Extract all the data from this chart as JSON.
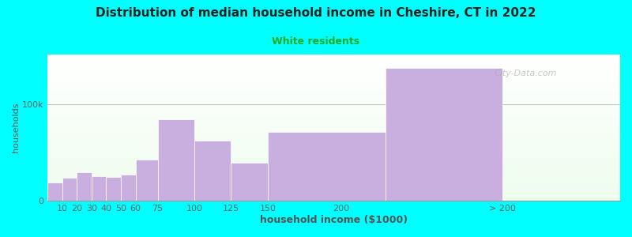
{
  "title": "Distribution of median household income in Cheshire, CT in 2022",
  "subtitle": "White residents",
  "xlabel": "household income ($1000)",
  "ylabel": "households",
  "background_color": "#00FFFF",
  "bar_color": "#c9aee0",
  "gridline_color": "#bbbbbb",
  "title_color": "#222222",
  "subtitle_color": "#22aa22",
  "axis_label_color": "#555555",
  "tick_color": "#666666",
  "watermark": "City-Data.com",
  "categories": [
    "10",
    "20",
    "30",
    "40",
    "50",
    "60",
    "75",
    "100",
    "125",
    "150",
    "200",
    "> 200"
  ],
  "bar_lefts": [
    0,
    10,
    20,
    30,
    40,
    50,
    60,
    75,
    100,
    125,
    150,
    230
  ],
  "bar_widths": [
    10,
    10,
    10,
    10,
    10,
    10,
    15,
    25,
    25,
    25,
    80,
    80
  ],
  "values": [
    19000,
    24000,
    30000,
    26000,
    25000,
    27000,
    43000,
    85000,
    63000,
    40000,
    72000,
    138000
  ],
  "xtick_positions": [
    10,
    20,
    30,
    40,
    50,
    60,
    75,
    100,
    125,
    150,
    200,
    310
  ],
  "xtick_labels": [
    "10",
    "20",
    "30",
    "40",
    "50",
    "60",
    "75",
    "100",
    "125",
    "150",
    "200",
    "> 200"
  ],
  "ytick_labels": [
    "0",
    "100k"
  ],
  "ytick_values": [
    0,
    100000
  ],
  "ylim": [
    0,
    152000
  ],
  "xlim": [
    0,
    390
  ]
}
